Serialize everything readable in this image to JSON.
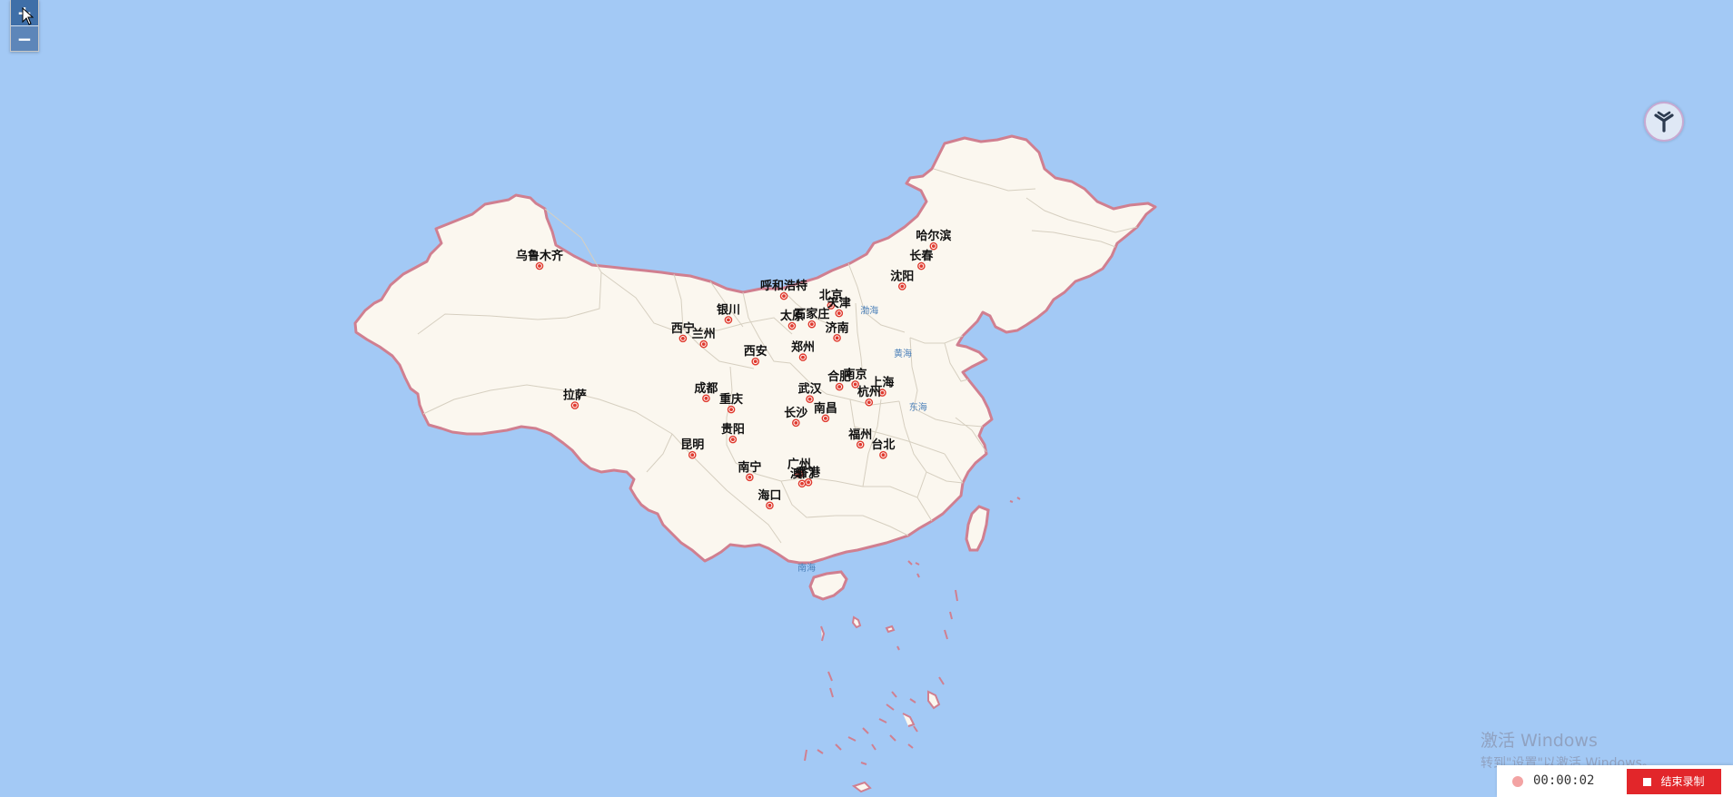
{
  "zoom": {
    "in_label": "+",
    "out_label": "−"
  },
  "colors": {
    "sea": "#a3c9f5",
    "land": "#fbf7ef",
    "border": "#d07f90",
    "province": "#d6cfc0",
    "marker": "#e03a2e"
  },
  "cities": [
    {
      "name": "乌鲁木齐",
      "lon": 87.62,
      "lat": 43.83
    },
    {
      "name": "拉萨",
      "lon": 91.11,
      "lat": 29.97
    },
    {
      "name": "西宁",
      "lon": 101.78,
      "lat": 36.62
    },
    {
      "name": "兰州",
      "lon": 103.83,
      "lat": 36.06
    },
    {
      "name": "银川",
      "lon": 106.27,
      "lat": 38.47
    },
    {
      "name": "呼和浩特",
      "lon": 111.75,
      "lat": 40.84
    },
    {
      "name": "北京",
      "lon": 116.4,
      "lat": 39.9
    },
    {
      "name": "天津",
      "lon": 117.2,
      "lat": 39.13
    },
    {
      "name": "石家庄",
      "lon": 114.51,
      "lat": 38.04
    },
    {
      "name": "太原",
      "lon": 112.55,
      "lat": 37.87
    },
    {
      "name": "济南",
      "lon": 117.0,
      "lat": 36.67
    },
    {
      "name": "郑州",
      "lon": 113.63,
      "lat": 34.75
    },
    {
      "name": "西安",
      "lon": 108.94,
      "lat": 34.34
    },
    {
      "name": "成都",
      "lon": 104.07,
      "lat": 30.67
    },
    {
      "name": "重庆",
      "lon": 106.55,
      "lat": 29.56
    },
    {
      "name": "贵阳",
      "lon": 106.71,
      "lat": 26.58
    },
    {
      "name": "昆明",
      "lon": 102.71,
      "lat": 25.04
    },
    {
      "name": "南宁",
      "lon": 108.37,
      "lat": 22.82
    },
    {
      "name": "广州",
      "lon": 113.26,
      "lat": 23.13
    },
    {
      "name": "澳门",
      "lon": 113.54,
      "lat": 22.19
    },
    {
      "name": "香港",
      "lon": 114.17,
      "lat": 22.32
    },
    {
      "name": "海口",
      "lon": 110.35,
      "lat": 20.02
    },
    {
      "name": "长沙",
      "lon": 112.94,
      "lat": 28.23
    },
    {
      "name": "武汉",
      "lon": 114.31,
      "lat": 30.59
    },
    {
      "name": "南昌",
      "lon": 115.86,
      "lat": 28.68
    },
    {
      "name": "合肥",
      "lon": 117.23,
      "lat": 31.82
    },
    {
      "name": "南京",
      "lon": 118.8,
      "lat": 32.06
    },
    {
      "name": "上海",
      "lon": 121.47,
      "lat": 31.23
    },
    {
      "name": "杭州",
      "lon": 120.16,
      "lat": 30.27
    },
    {
      "name": "福州",
      "lon": 119.3,
      "lat": 26.07
    },
    {
      "name": "台北",
      "lon": 121.56,
      "lat": 25.04
    },
    {
      "name": "沈阳",
      "lon": 123.43,
      "lat": 41.8
    },
    {
      "name": "长春",
      "lon": 125.32,
      "lat": 43.82
    },
    {
      "name": "哈尔滨",
      "lon": 126.53,
      "lat": 45.8
    }
  ],
  "seas": [
    {
      "name": "渤海",
      "lon": 120.2,
      "lat": 39.1
    },
    {
      "name": "黄海",
      "lon": 123.5,
      "lat": 34.8
    },
    {
      "name": "东海",
      "lon": 125.0,
      "lat": 29.5
    },
    {
      "name": "南海",
      "lon": 114.0,
      "lat": 13.5
    }
  ],
  "watermark": {
    "line1": "激活 Windows",
    "line2": "转到\"设置\"以激活 Windows。"
  },
  "recorder": {
    "time": "00:00:02",
    "stop_label": "结束录制"
  }
}
